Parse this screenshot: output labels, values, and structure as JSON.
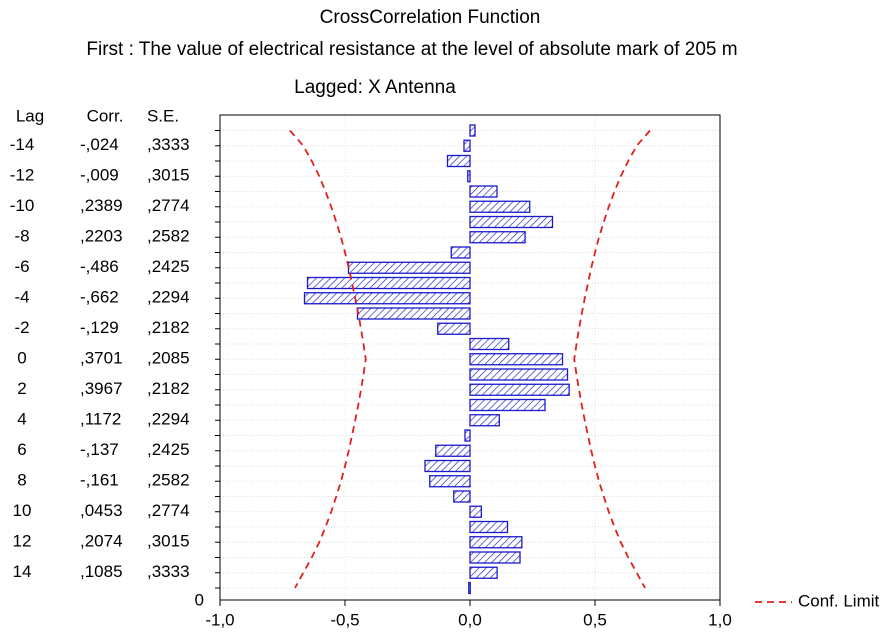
{
  "chart_data": {
    "type": "bar",
    "orientation": "horizontal",
    "title": "CrossCorrelation Function",
    "subtitle": "First : The value of electrical resistance at the level of absolute mark of 205 m",
    "subtitle2": "Lagged:  X Antenna",
    "table_headers": [
      "Lag",
      "Corr.",
      "S.E."
    ],
    "categories": [
      null,
      "-14",
      null,
      "-12",
      null,
      "-10",
      null,
      "-8",
      null,
      "-6",
      null,
      "-4",
      null,
      "-2",
      null,
      "0",
      null,
      "2",
      null,
      "4",
      null,
      "6",
      null,
      "8",
      null,
      "10",
      null,
      "12",
      null,
      "14",
      null
    ],
    "values": [
      0.02,
      -0.024,
      -0.09,
      -0.009,
      0.108,
      0.2389,
      0.33,
      0.2203,
      -0.075,
      -0.486,
      -0.65,
      -0.662,
      -0.45,
      -0.129,
      0.155,
      0.3701,
      0.39,
      0.3967,
      0.3,
      0.1172,
      -0.02,
      -0.137,
      -0.18,
      -0.161,
      -0.065,
      0.0453,
      0.15,
      0.2074,
      0.2,
      0.1085,
      -0.005
    ],
    "value_labels": [
      null,
      "-,024",
      null,
      "-,009",
      null,
      ",2389",
      null,
      ",2203",
      null,
      "-,486",
      null,
      "-,662",
      null,
      "-,129",
      null,
      ",3701",
      null,
      ",3967",
      null,
      ",1172",
      null,
      "-,137",
      null,
      "-,161",
      null,
      ",0453",
      null,
      ",2074",
      null,
      ",1085",
      null
    ],
    "se_labels": [
      null,
      ",3333",
      null,
      ",3015",
      null,
      ",2774",
      null,
      ",2582",
      null,
      ",2425",
      null,
      ",2294",
      null,
      ",2182",
      null,
      ",2085",
      null,
      ",2182",
      null,
      ",2294",
      null,
      ",2425",
      null,
      ",2582",
      null,
      ",2774",
      null,
      ",3015",
      null,
      ",3333",
      null
    ],
    "color": "#1a1acc",
    "conf_limit": {
      "name": "Conf. Limit",
      "color": "#e02020",
      "upper": [
        0.72,
        0.667,
        0.633,
        0.603,
        0.578,
        0.555,
        0.535,
        0.516,
        0.5,
        0.485,
        0.472,
        0.459,
        0.447,
        0.436,
        0.426,
        0.417,
        0.426,
        0.436,
        0.447,
        0.459,
        0.472,
        0.485,
        0.5,
        0.516,
        0.535,
        0.555,
        0.578,
        0.603,
        0.633,
        0.667,
        0.7
      ],
      "lower": [
        -0.72,
        -0.667,
        -0.633,
        -0.603,
        -0.578,
        -0.555,
        -0.535,
        -0.516,
        -0.5,
        -0.485,
        -0.472,
        -0.459,
        -0.447,
        -0.436,
        -0.426,
        -0.417,
        -0.426,
        -0.436,
        -0.447,
        -0.459,
        -0.472,
        -0.485,
        -0.5,
        -0.516,
        -0.535,
        -0.555,
        -0.578,
        -0.603,
        -0.633,
        -0.667,
        -0.7
      ]
    },
    "origin_label": "0",
    "xlim": [
      -1,
      1
    ],
    "xticks": [
      {
        "value": -1,
        "label": "-1,0"
      },
      {
        "value": -0.5,
        "label": "-0,5"
      },
      {
        "value": 0,
        "label": "0,0"
      },
      {
        "value": 0.5,
        "label": "0,5"
      },
      {
        "value": 1,
        "label": "1,0"
      }
    ],
    "grid": true,
    "legend_position": "bottom-right"
  }
}
